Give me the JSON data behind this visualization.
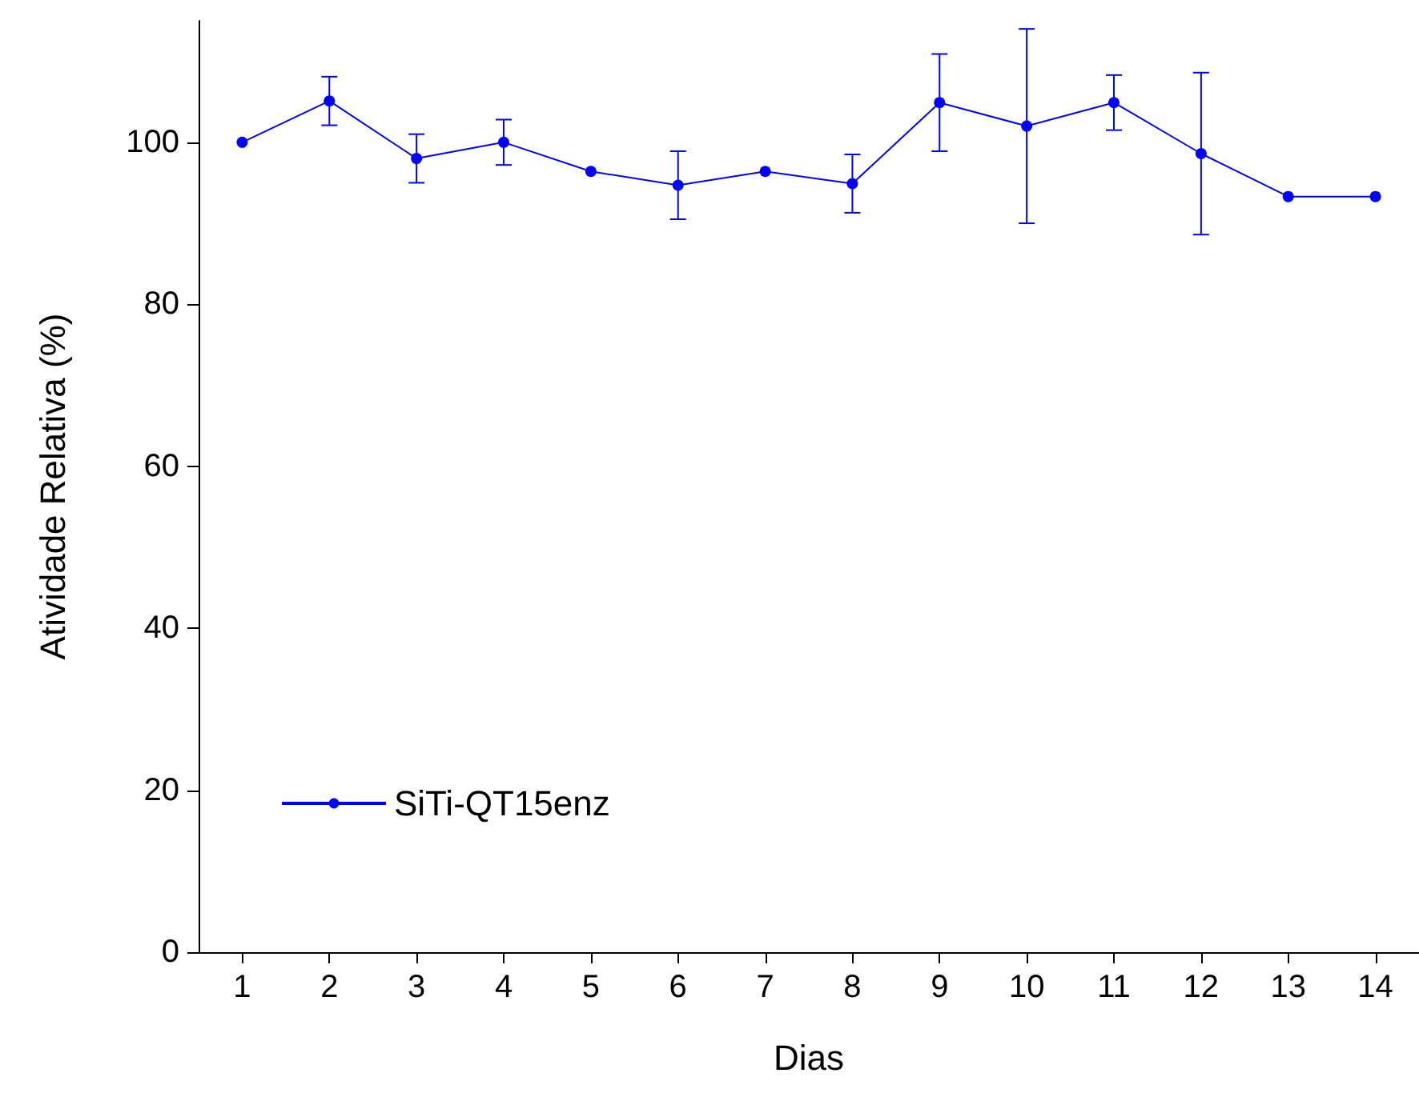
{
  "chart_data": {
    "type": "line",
    "xlabel": "Dias",
    "ylabel": "Atividade Relativa (%)",
    "x": [
      1,
      2,
      3,
      4,
      5,
      6,
      7,
      8,
      9,
      10,
      11,
      12,
      13,
      14
    ],
    "series": [
      {
        "name": "SiTi-QT15enz",
        "color": "#0000ff",
        "values": [
          100,
          105.1,
          98,
          100,
          96.4,
          94.7,
          96.4,
          94.9,
          104.9,
          102,
          104.9,
          98.6,
          93.3,
          93.3
        ],
        "errors": [
          null,
          3,
          3,
          2.8,
          null,
          4.2,
          null,
          3.6,
          6,
          12,
          3.4,
          10,
          null,
          null
        ]
      }
    ],
    "xlim": [
      0.5,
      14.5
    ],
    "xticks": [
      1,
      2,
      3,
      4,
      5,
      6,
      7,
      8,
      9,
      10,
      11,
      12,
      13,
      14
    ],
    "ylim": [
      0,
      115
    ],
    "yticks": [
      0,
      20,
      40,
      60,
      80,
      100
    ],
    "grid": false,
    "legend": "bottom left",
    "marker": "circle",
    "line_style": "solid"
  }
}
